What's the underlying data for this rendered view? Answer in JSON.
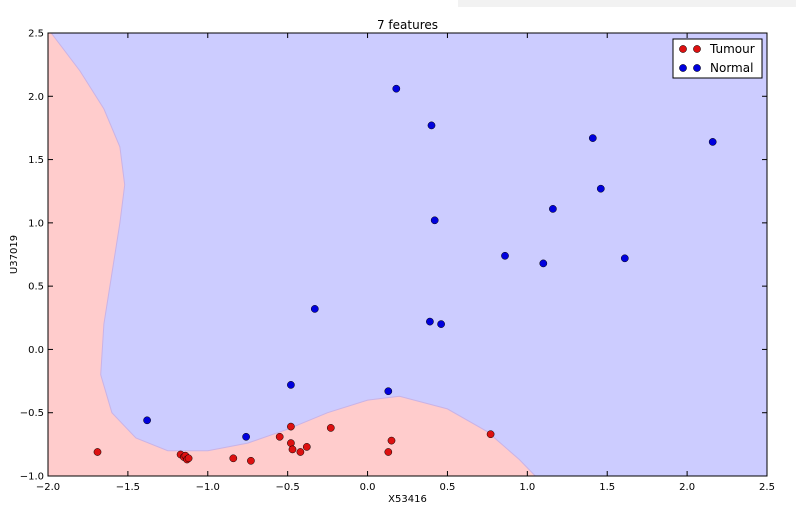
{
  "chart_data": {
    "type": "scatter",
    "title": "7 features",
    "xlabel": "X53416",
    "ylabel": "U37019",
    "xlim": [
      -2.0,
      2.5
    ],
    "ylim": [
      -1.0,
      2.5
    ],
    "x_ticks": [
      -2.0,
      -1.5,
      -1.0,
      -0.5,
      0.0,
      0.5,
      1.0,
      1.5,
      2.0,
      2.5
    ],
    "x_tick_labels": [
      "−2.0",
      "−1.5",
      "−1.0",
      "−0.5",
      "0.0",
      "0.5",
      "1.0",
      "1.5",
      "2.0",
      "2.5"
    ],
    "y_ticks": [
      -1.0,
      -0.5,
      0.0,
      0.5,
      1.0,
      1.5,
      2.0,
      2.5
    ],
    "y_tick_labels": [
      "−1.0",
      "−0.5",
      "0.0",
      "0.5",
      "1.0",
      "1.5",
      "2.0",
      "2.5"
    ],
    "grid": false,
    "legend_position": "top-right",
    "background_regions": [
      {
        "name": "Normal region",
        "color": "#ccccff"
      },
      {
        "name": "Tumour region",
        "color": "#ffcccc"
      }
    ],
    "decision_boundary": [
      [
        -1.98,
        2.5
      ],
      [
        -1.8,
        2.2
      ],
      [
        -1.65,
        1.9
      ],
      [
        -1.55,
        1.6
      ],
      [
        -1.52,
        1.3
      ],
      [
        -1.55,
        1.0
      ],
      [
        -1.6,
        0.6
      ],
      [
        -1.65,
        0.2
      ],
      [
        -1.67,
        -0.2
      ],
      [
        -1.6,
        -0.5
      ],
      [
        -1.45,
        -0.7
      ],
      [
        -1.25,
        -0.8
      ],
      [
        -1.0,
        -0.8
      ],
      [
        -0.75,
        -0.74
      ],
      [
        -0.5,
        -0.63
      ],
      [
        -0.25,
        -0.5
      ],
      [
        0.0,
        -0.4
      ],
      [
        0.2,
        -0.37
      ],
      [
        0.5,
        -0.47
      ],
      [
        0.75,
        -0.65
      ],
      [
        0.95,
        -0.87
      ],
      [
        1.05,
        -1.0
      ]
    ],
    "series": [
      {
        "name": "Tumour",
        "color": "#dd1111",
        "points": [
          [
            -1.69,
            -0.81
          ],
          [
            -1.17,
            -0.83
          ],
          [
            -1.15,
            -0.85
          ],
          [
            -1.14,
            -0.84
          ],
          [
            -1.13,
            -0.87
          ],
          [
            -1.12,
            -0.86
          ],
          [
            -0.84,
            -0.86
          ],
          [
            -0.73,
            -0.88
          ],
          [
            -0.55,
            -0.69
          ],
          [
            -0.48,
            -0.61
          ],
          [
            -0.48,
            -0.74
          ],
          [
            -0.47,
            -0.79
          ],
          [
            -0.42,
            -0.81
          ],
          [
            -0.38,
            -0.77
          ],
          [
            -0.23,
            -0.62
          ],
          [
            0.13,
            -0.81
          ],
          [
            0.15,
            -0.72
          ],
          [
            0.77,
            -0.67
          ]
        ]
      },
      {
        "name": "Normal",
        "color": "#0000dd",
        "points": [
          [
            0.18,
            2.06
          ],
          [
            0.4,
            1.77
          ],
          [
            1.41,
            1.67
          ],
          [
            2.16,
            1.64
          ],
          [
            1.46,
            1.27
          ],
          [
            1.16,
            1.11
          ],
          [
            0.42,
            1.02
          ],
          [
            0.86,
            0.74
          ],
          [
            1.1,
            0.68
          ],
          [
            1.61,
            0.72
          ],
          [
            -0.33,
            0.32
          ],
          [
            0.39,
            0.22
          ],
          [
            0.46,
            0.2
          ],
          [
            -0.48,
            -0.28
          ],
          [
            0.13,
            -0.33
          ],
          [
            -1.38,
            -0.56
          ],
          [
            -0.76,
            -0.69
          ]
        ]
      }
    ]
  }
}
